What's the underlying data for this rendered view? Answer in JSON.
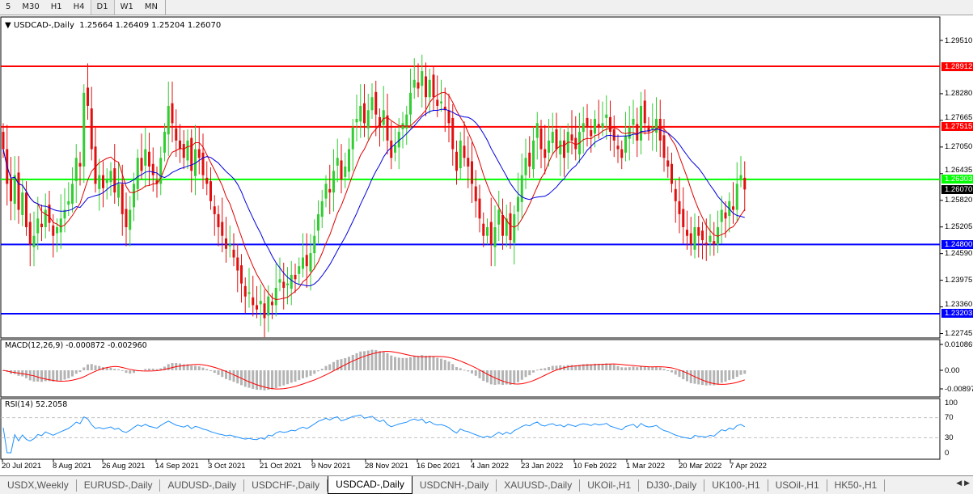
{
  "toolbar": {
    "timeframes": [
      "5",
      "M30",
      "H1",
      "H4",
      "D1",
      "W1",
      "MN"
    ],
    "active": "D1"
  },
  "header": {
    "symbol_label": "USDCAD-,Daily",
    "ohlc": "1.25664 1.26409 1.25204 1.26070"
  },
  "macd": {
    "label": "MACD(12,26,9) -0.000872 -0.002960",
    "ticks": [
      "0.010869",
      "0.00",
      "-0.00897"
    ]
  },
  "rsi": {
    "label": "RSI(14) 52.2058",
    "ticks": [
      "100",
      "70",
      "30",
      "0"
    ]
  },
  "colors": {
    "bull": "#32cd32",
    "bear": "#e01010",
    "fast_ma": "#e00000",
    "slow_ma": "#0000e0",
    "macd_hist": "#b4b4b4",
    "macd_signal": "#ff0000",
    "rsi": "#1e90ff"
  },
  "chart_data": {
    "type": "candlestick",
    "symbol": "USDCAD-",
    "timeframe": "Daily",
    "ylim": [
      1.2245,
      1.2985
    ],
    "y_ticks": [
      "1.29510",
      "1.28280",
      "1.27665",
      "1.27050",
      "1.26435",
      "1.25820",
      "1.25205",
      "1.24590",
      "1.23975",
      "1.23360",
      "1.22745"
    ],
    "x_ticks": [
      "20 Jul 2021",
      "8 Aug 2021",
      "26 Aug 2021",
      "14 Sep 2021",
      "3 Oct 2021",
      "21 Oct 2021",
      "9 Nov 2021",
      "28 Nov 2021",
      "16 Dec 2021",
      "4 Jan 2022",
      "23 Jan 2022",
      "10 Feb 2022",
      "1 Mar 2022",
      "20 Mar 2022",
      "7 Apr 2022"
    ],
    "last_price": "1.26070",
    "hlines": [
      {
        "price": 1.28912,
        "label": "1.28912",
        "color": "#ff0000"
      },
      {
        "price": 1.27515,
        "label": "1.27515",
        "color": "#ff0000"
      },
      {
        "price": 1.26303,
        "label": "1.26303",
        "color": "#00ff00"
      },
      {
        "price": 1.248,
        "label": "1.24800",
        "color": "#0000ff"
      },
      {
        "price": 1.23203,
        "label": "1.23203",
        "color": "#0000ff"
      }
    ],
    "closes": [
      1.27,
      1.262,
      1.258,
      1.264,
      1.256,
      1.26,
      1.252,
      1.248,
      1.25,
      1.254,
      1.252,
      1.256,
      1.253,
      1.25,
      1.252,
      1.254,
      1.256,
      1.258,
      1.262,
      1.268,
      1.266,
      1.283,
      1.28,
      1.27,
      1.262,
      1.264,
      1.261,
      1.263,
      1.265,
      1.26,
      1.262,
      1.255,
      1.252,
      1.256,
      1.262,
      1.268,
      1.265,
      1.27,
      1.266,
      1.264,
      1.262,
      1.268,
      1.274,
      1.28,
      1.276,
      1.272,
      1.27,
      1.268,
      1.272,
      1.265,
      1.27,
      1.268,
      1.264,
      1.262,
      1.258,
      1.255,
      1.252,
      1.25,
      1.247,
      1.248,
      1.245,
      1.242,
      1.239,
      1.236,
      1.237,
      1.234,
      1.233,
      1.235,
      1.231,
      1.236,
      1.234,
      1.238,
      1.24,
      1.238,
      1.239,
      1.241,
      1.24,
      1.243,
      1.245,
      1.243,
      1.246,
      1.25,
      1.255,
      1.258,
      1.262,
      1.26,
      1.265,
      1.268,
      1.263,
      1.266,
      1.27,
      1.275,
      1.277,
      1.28,
      1.276,
      1.279,
      1.282,
      1.278,
      1.275,
      1.279,
      1.272,
      1.268,
      1.271,
      1.274,
      1.276,
      1.278,
      1.283,
      1.286,
      1.284,
      1.288,
      1.282,
      1.286,
      1.282,
      1.28,
      1.281,
      1.279,
      1.276,
      1.27,
      1.265,
      1.272,
      1.268,
      1.266,
      1.262,
      1.258,
      1.254,
      1.25,
      1.252,
      1.248,
      1.252,
      1.256,
      1.25,
      1.254,
      1.249,
      1.255,
      1.259,
      1.264,
      1.268,
      1.266,
      1.272,
      1.276,
      1.27,
      1.268,
      1.272,
      1.274,
      1.27,
      1.272,
      1.268,
      1.274,
      1.272,
      1.27,
      1.274,
      1.276,
      1.275,
      1.273,
      1.277,
      1.275,
      1.276,
      1.278,
      1.274,
      1.272,
      1.27,
      1.268,
      1.273,
      1.275,
      1.277,
      1.272,
      1.28,
      1.276,
      1.274,
      1.275,
      1.277,
      1.272,
      1.268,
      1.266,
      1.262,
      1.258,
      1.255,
      1.252,
      1.25,
      1.248,
      1.252,
      1.25,
      1.249,
      1.248,
      1.25,
      1.248,
      1.252,
      1.256,
      1.254,
      1.258,
      1.256,
      1.262,
      1.264,
      1.2607
    ]
  },
  "tabs": [
    "USDX,Weekly",
    "EURUSD-,Daily",
    "AUDUSD-,Daily",
    "USDCHF-,Daily",
    "USDCAD-,Daily",
    "USDCNH-,Daily",
    "XAUUSD-,Daily",
    "UKOil-,H1",
    "DJ30-,Daily",
    "UK100-,H1",
    "USOil-,H1",
    "HK50-,H1"
  ],
  "active_tab": "USDCAD-,Daily"
}
